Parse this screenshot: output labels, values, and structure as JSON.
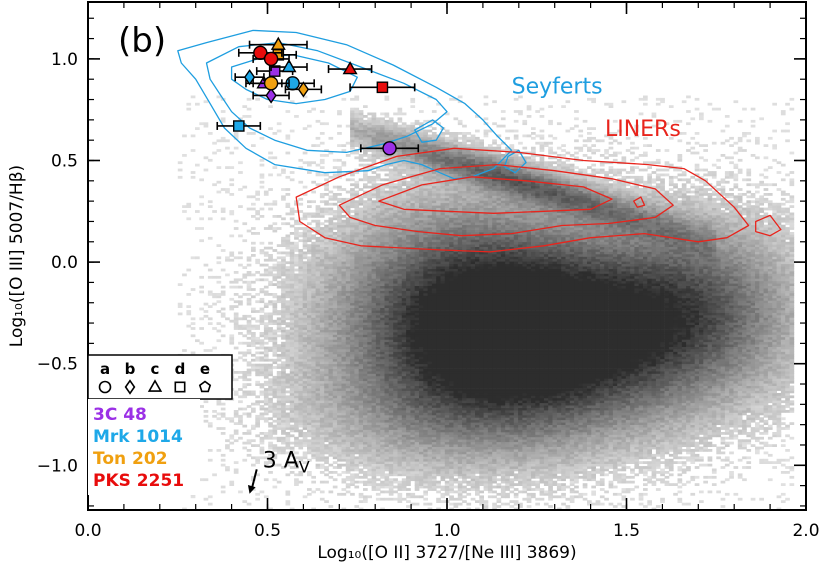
{
  "chart_data": {
    "type": "scatter",
    "panel_label": "(b)",
    "xlabel": "Log₁₀([O II] 3727/[Ne III] 3869)",
    "ylabel": "Log₁₀([O III] 5007/Hβ)",
    "xlim": [
      0.0,
      2.0
    ],
    "ylim": [
      -1.22,
      1.28
    ],
    "x_ticks": [
      0.0,
      0.5,
      1.0,
      1.5,
      2.0
    ],
    "x_tick_labels": [
      "0.0",
      "0.5",
      "1.0",
      "1.5",
      "2.0"
    ],
    "y_ticks": [
      -1.0,
      -0.5,
      0.0,
      0.5,
      1.0
    ],
    "y_tick_labels": [
      "−1.0",
      "−0.5",
      "0.0",
      "0.5",
      "1.0"
    ],
    "background": "grey 2D histogram of the full galaxy sample",
    "region_labels": [
      {
        "text": "Seyferts",
        "color": "#1e9ee0",
        "x": 1.18,
        "y": 0.83
      },
      {
        "text": "LINERs",
        "color": "#e8241c",
        "x": 1.44,
        "y": 0.62
      }
    ],
    "extinction_vector": {
      "label": "3 A",
      "subscript": "V",
      "x": 0.47,
      "y": -1.02,
      "dx": -0.02,
      "dy": -0.12
    },
    "legend": {
      "placement": "bottom-left",
      "shape_keys": [
        {
          "letter": "a",
          "shape": "circle"
        },
        {
          "letter": "b",
          "shape": "diamond"
        },
        {
          "letter": "c",
          "shape": "triangle"
        },
        {
          "letter": "d",
          "shape": "square"
        },
        {
          "letter": "e",
          "shape": "pentagon"
        }
      ],
      "objects": [
        {
          "name": "3C 48",
          "color": "#9b30e6"
        },
        {
          "name": "Mrk 1014",
          "color": "#1ea8e8"
        },
        {
          "name": "Ton 202",
          "color": "#f0a010"
        },
        {
          "name": "PKS 2251",
          "color": "#e80c0c"
        }
      ]
    },
    "series": [
      {
        "name": "3C 48",
        "color": "#9b30e6",
        "points": [
          {
            "x": 0.84,
            "y": 0.56,
            "shape": "circle",
            "xerr": 0.08
          },
          {
            "x": 0.51,
            "y": 0.82,
            "shape": "diamond",
            "xerr": 0.05
          },
          {
            "x": 0.49,
            "y": 0.88,
            "shape": "triangle",
            "xerr": 0.05
          },
          {
            "x": 0.52,
            "y": 0.94,
            "shape": "square",
            "xerr": 0.05
          }
        ]
      },
      {
        "name": "Mrk 1014",
        "color": "#1ea8e8",
        "points": [
          {
            "x": 0.57,
            "y": 0.88,
            "shape": "circle",
            "xerr": 0.06
          },
          {
            "x": 0.45,
            "y": 0.91,
            "shape": "diamond",
            "xerr": 0.04
          },
          {
            "x": 0.56,
            "y": 0.96,
            "shape": "triangle",
            "xerr": 0.05
          },
          {
            "x": 0.42,
            "y": 0.67,
            "shape": "square",
            "xerr": 0.06
          }
        ]
      },
      {
        "name": "Ton 202",
        "color": "#f0a010",
        "points": [
          {
            "x": 0.51,
            "y": 0.88,
            "shape": "circle",
            "xerr": 0.05
          },
          {
            "x": 0.6,
            "y": 0.85,
            "shape": "diamond",
            "xerr": 0.05
          },
          {
            "x": 0.53,
            "y": 1.07,
            "shape": "triangle",
            "xerr": 0.08
          },
          {
            "x": 0.53,
            "y": 1.02,
            "shape": "square",
            "xerr": 0.05
          }
        ]
      },
      {
        "name": "PKS 2251",
        "color": "#e80c0c",
        "points": [
          {
            "x": 0.48,
            "y": 1.03,
            "shape": "circle",
            "xerr": 0.06
          },
          {
            "x": 0.51,
            "y": 1.0,
            "shape": "circle",
            "xerr": 0.05
          },
          {
            "x": 0.73,
            "y": 0.95,
            "shape": "triangle",
            "xerr": 0.06
          },
          {
            "x": 0.82,
            "y": 0.86,
            "shape": "square",
            "xerr": 0.09
          }
        ]
      }
    ]
  }
}
